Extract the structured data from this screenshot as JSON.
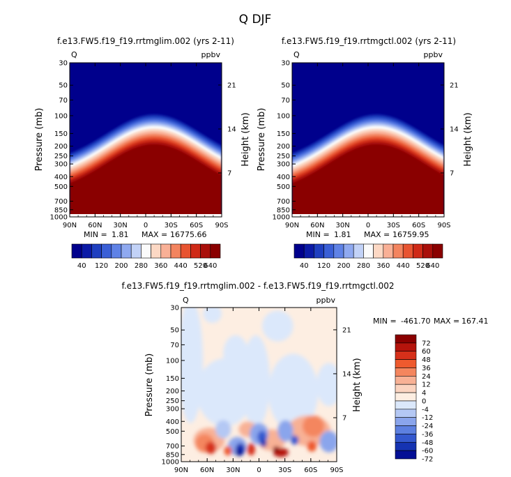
{
  "figure_title": "Q DJF",
  "chart_data": [
    {
      "type": "heatmap",
      "title": "f.e13.FW5.f19_f19.rrtmglim.002 (yrs 2-11)",
      "variable": "Q",
      "units": "ppbv",
      "xlabel": "",
      "ylabel": "Pressure (mb)",
      "y2label": "Height (km)",
      "x_ticks": [
        "90N",
        "60N",
        "30N",
        "0",
        "30S",
        "60S",
        "90S"
      ],
      "y_ticks": [
        "30",
        "50",
        "70",
        "100",
        "150",
        "200",
        "250",
        "300",
        "400",
        "500",
        "700",
        "850",
        "1000"
      ],
      "y2_ticks": [
        "21",
        "14",
        "7"
      ],
      "min_label": "MIN =",
      "min_value": "1.81",
      "max_label": "MAX =",
      "max_value": "16775.66",
      "colorbar_labels": [
        "40",
        "120",
        "200",
        "280",
        "360",
        "440",
        "520",
        "640"
      ],
      "colorbar_levels": [
        40,
        80,
        120,
        160,
        200,
        240,
        280,
        320,
        360,
        400,
        440,
        480,
        520,
        560,
        640
      ]
    },
    {
      "type": "heatmap",
      "title": "f.e13.FW5.f19_f19.rrtmgctl.002 (yrs 2-11)",
      "variable": "Q",
      "units": "ppbv",
      "xlabel": "",
      "ylabel": "Pressure (mb)",
      "y2label": "Height (km)",
      "x_ticks": [
        "90N",
        "60N",
        "30N",
        "0",
        "30S",
        "60S",
        "90S"
      ],
      "y_ticks": [
        "30",
        "50",
        "70",
        "100",
        "150",
        "200",
        "250",
        "300",
        "400",
        "500",
        "700",
        "850",
        "1000"
      ],
      "y2_ticks": [
        "21",
        "14",
        "7"
      ],
      "min_label": "MIN =",
      "min_value": "1.81",
      "max_label": "MAX =",
      "max_value": "16759.95",
      "colorbar_labels": [
        "40",
        "120",
        "200",
        "280",
        "360",
        "440",
        "520",
        "640"
      ],
      "colorbar_levels": [
        40,
        80,
        120,
        160,
        200,
        240,
        280,
        320,
        360,
        400,
        440,
        480,
        520,
        560,
        640
      ]
    },
    {
      "type": "heatmap",
      "title": "f.e13.FW5.f19_f19.rrtmglim.002 - f.e13.FW5.f19_f19.rrtmgctl.002",
      "variable": "Q",
      "units": "ppbv",
      "xlabel": "",
      "ylabel": "Pressure (mb)",
      "y2label": "Height (km)",
      "x_ticks": [
        "90N",
        "60N",
        "30N",
        "0",
        "30S",
        "60S",
        "90S"
      ],
      "y_ticks": [
        "30",
        "50",
        "70",
        "100",
        "150",
        "200",
        "250",
        "300",
        "400",
        "500",
        "700",
        "850",
        "1000"
      ],
      "y2_ticks": [
        "21",
        "14",
        "7"
      ],
      "min_label": "MIN =",
      "min_value": "-461.70",
      "max_label": "MAX =",
      "max_value": "167.41",
      "colorbar_labels": [
        "72",
        "60",
        "48",
        "36",
        "24",
        "12",
        "4",
        "0",
        "-4",
        "-12",
        "-24",
        "-36",
        "-48",
        "-60",
        "-72"
      ],
      "colorbar_levels": [
        72,
        60,
        48,
        36,
        24,
        12,
        4,
        0,
        -4,
        -12,
        -24,
        -36,
        -48,
        -60,
        -72
      ]
    }
  ],
  "colors": {
    "seq": [
      "#00008c",
      "#0b1aa6",
      "#1f3fc0",
      "#3a5fd6",
      "#5f82e6",
      "#8fa9f0",
      "#c2d2f7",
      "#fbfbfb",
      "#fcd8c4",
      "#f9b096",
      "#f3845f",
      "#e85431",
      "#cf2a17",
      "#a90f0a",
      "#8a0000"
    ],
    "div": [
      "#8a0000",
      "#b5140c",
      "#d6301a",
      "#ee5a2e",
      "#f4865e",
      "#f8b195",
      "#fbd4c0",
      "#fdeee2",
      "#dbe8fb",
      "#b4c8f4",
      "#8aa5ec",
      "#5d80e0",
      "#3458ce",
      "#1533b2",
      "#040f95"
    ]
  }
}
